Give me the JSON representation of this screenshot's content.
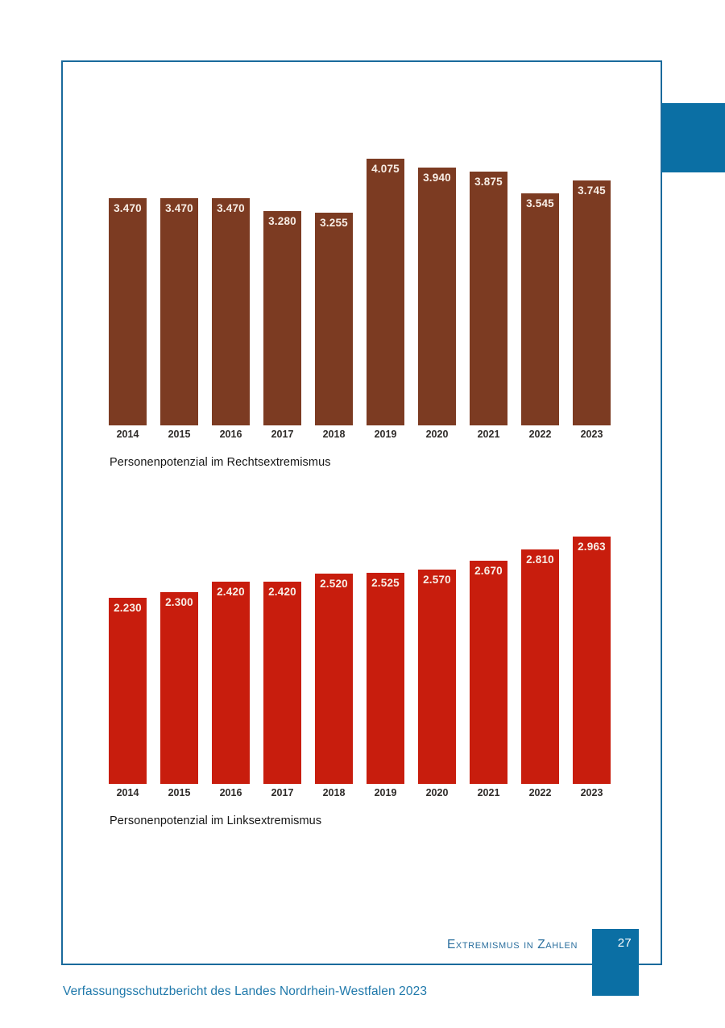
{
  "page": {
    "footer_heading": "Extremismus in Zahlen",
    "page_number": "27",
    "footer_text": "Verfassungsschutzbericht des Landes Nordrhein-Westfalen 2023"
  },
  "colors": {
    "frame_border": "#1a6a9c",
    "accent_blue": "#0b6fa4",
    "rechtsextremismus_bar": "#7c3b22",
    "linksextremismus_bar": "#c81d0d",
    "bar_value_text": "#f8eee6",
    "footer_blue": "#2079ab"
  },
  "chart_data": [
    {
      "type": "bar",
      "title": "Personenpotenzial im Rechtsextremismus",
      "categories": [
        "2014",
        "2015",
        "2016",
        "2017",
        "2018",
        "2019",
        "2020",
        "2021",
        "2022",
        "2023"
      ],
      "values": [
        3470,
        3470,
        3470,
        3280,
        3255,
        4075,
        3940,
        3875,
        3545,
        3745
      ],
      "value_labels": [
        "3.470",
        "3.470",
        "3.470",
        "3.280",
        "3.255",
        "4.075",
        "3.940",
        "3.875",
        "3.545",
        "3.745"
      ],
      "bar_color": "#7c3b22",
      "xlabel": "",
      "ylabel": "",
      "ylim": [
        0,
        4075
      ],
      "grid": false,
      "legend": false,
      "value_label_position": "inside-top"
    },
    {
      "type": "bar",
      "title": "Personenpotenzial im Linksextremismus",
      "categories": [
        "2014",
        "2015",
        "2016",
        "2017",
        "2018",
        "2019",
        "2020",
        "2021",
        "2022",
        "2023"
      ],
      "values": [
        2230,
        2300,
        2420,
        2420,
        2520,
        2525,
        2570,
        2670,
        2810,
        2963
      ],
      "value_labels": [
        "2.230",
        "2.300",
        "2.420",
        "2.420",
        "2.520",
        "2.525",
        "2.570",
        "2.670",
        "2.810",
        "2.963"
      ],
      "bar_color": "#c81d0d",
      "xlabel": "",
      "ylabel": "",
      "ylim": [
        0,
        2963
      ],
      "grid": false,
      "legend": false,
      "value_label_position": "inside-top"
    }
  ]
}
